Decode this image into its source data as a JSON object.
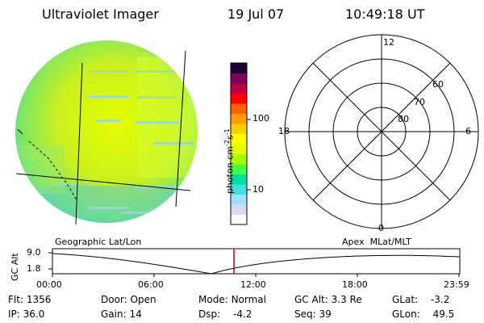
{
  "header": {
    "title": "Ultraviolet Imager",
    "date": "19 Jul 07",
    "time": "10:49:18 UT"
  },
  "colorbar": {
    "unit_label": "photon cm",
    "unit_sup1": "-2",
    "unit_mid": "s",
    "unit_sup2": "-1",
    "scale": "log",
    "ticks": [
      "10",
      "100"
    ],
    "colors": [
      "#ffffff",
      "#d8d8f0",
      "#a0e0ff",
      "#40e0e0",
      "#00e0a0",
      "#40ff40",
      "#a0ff00",
      "#e0ff00",
      "#ffff00",
      "#ffd000",
      "#ffa000",
      "#ff6000",
      "#ff0000",
      "#c00040",
      "#800060",
      "#200030"
    ]
  },
  "left_panel": {
    "label": "Geographic Lat/Lon"
  },
  "right_panel": {
    "label": "Apex  MLat/MLT",
    "mlt_labels": {
      "top": "12",
      "left": "18",
      "right": "6",
      "bottom": "0"
    },
    "lat_labels": [
      "60",
      "70",
      "80"
    ]
  },
  "altitude_plot": {
    "ylabel": "GC Alt",
    "y_ticks": [
      "9.0",
      "1.8"
    ],
    "x_ticks": [
      "00:00",
      "06:00",
      "12:00",
      "18:00",
      "23:59"
    ],
    "marker_time": "10:49:18",
    "marker_color": "#cc0000"
  },
  "status": {
    "flt": {
      "label": "Flt:",
      "value": "1356"
    },
    "ip": {
      "label": "IP:",
      "value": "36.0"
    },
    "door": {
      "label": "Door:",
      "value": "Open"
    },
    "gain": {
      "label": "Gain:",
      "value": "14"
    },
    "mode": {
      "label": "Mode:",
      "value": "Normal"
    },
    "dsp": {
      "label": "Dsp:",
      "value": "-4.2"
    },
    "gc_alt": {
      "label": "GC Alt:",
      "value": "3.3 Re"
    },
    "seq": {
      "label": "Seq:",
      "value": "39"
    },
    "glat": {
      "label": "GLat:",
      "value": "-3.2"
    },
    "glon": {
      "label": "GLon:",
      "value": "49.5"
    }
  }
}
